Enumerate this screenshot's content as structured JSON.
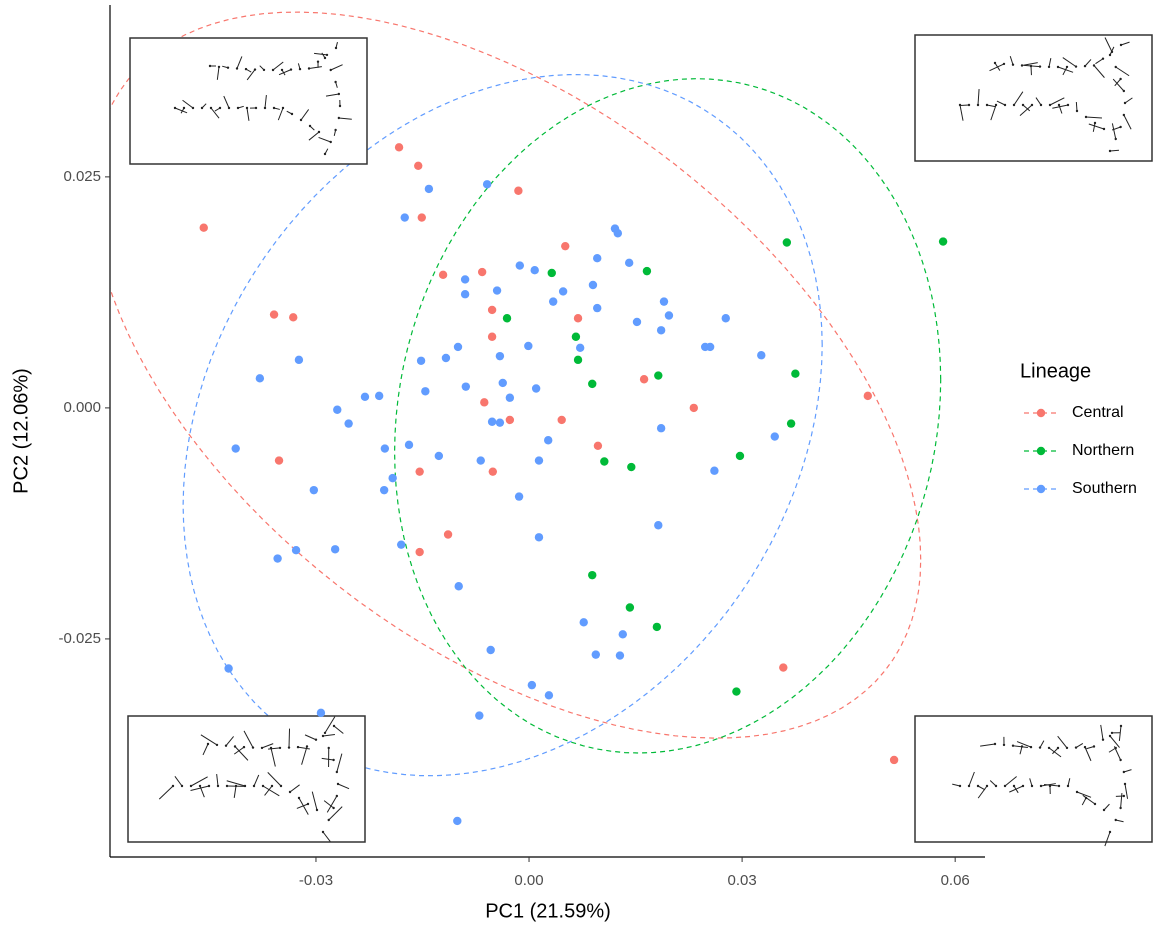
{
  "chart_data": {
    "type": "scatter",
    "x_label": "PC1 (21.59%)",
    "y_label": "PC2 (12.06%)",
    "xlim": [
      -0.059,
      0.0642
    ],
    "ylim": [
      -0.0486,
      0.0436
    ],
    "xticks": [
      -0.03,
      {
        "value": 0,
        "label": "0.00"
      },
      0.03,
      0.06
    ],
    "yticks": [
      -0.025,
      {
        "value": 0,
        "label": "0.000"
      },
      0.025
    ],
    "grid": false,
    "legend_position": "right",
    "legend_title": "Lineage",
    "series": [
      {
        "name": "Central",
        "color": "#F8766D",
        "x": [
          -0.0458,
          -0.0359,
          -0.0332,
          -0.0352,
          -0.0183,
          -0.0156,
          -0.0151,
          -0.0121,
          -0.0066,
          -0.0052,
          -0.0052,
          -0.0063,
          -0.0051,
          -0.0114,
          -0.0154,
          -0.0154,
          -0.0015,
          0.0051,
          0.0069,
          -0.0027,
          0.0046,
          0.0097,
          0.0162,
          0.0232,
          0.0477,
          0.0358,
          0.0514
        ],
        "y": [
          0.0195,
          0.0101,
          0.0098,
          -0.0057,
          0.0282,
          0.0262,
          0.0206,
          0.0144,
          0.0147,
          0.0106,
          0.0077,
          0.0006,
          -0.0069,
          -0.0137,
          -0.0156,
          -0.0069,
          0.0235,
          0.0175,
          0.0097,
          -0.0013,
          -0.0013,
          -0.0041,
          0.0031,
          0.0,
          0.0013,
          -0.0281,
          -0.0381
        ]
      },
      {
        "name": "Northern",
        "color": "#00BA38",
        "x": [
          0.0583,
          0.0363,
          0.0375,
          0.0369,
          0.0297,
          0.0292,
          0.018,
          0.0142,
          0.0089,
          0.0144,
          0.0106,
          0.0089,
          0.0069,
          0.0066,
          0.0032,
          0.0166,
          0.0182,
          -0.0031
        ],
        "y": [
          0.018,
          0.0179,
          0.0037,
          -0.0017,
          -0.0052,
          -0.0307,
          -0.0237,
          -0.0216,
          -0.0181,
          -0.0064,
          -0.0058,
          0.0026,
          0.0052,
          0.0077,
          0.0146,
          0.0148,
          0.0035,
          0.0097
        ]
      },
      {
        "name": "Southern",
        "color": "#619CFF",
        "x": [
          -0.0141,
          -0.0175,
          -0.0059,
          0.0121,
          0.0125,
          0.0096,
          0.0141,
          -0.0013,
          0.0008,
          -0.009,
          -0.0045,
          -0.009,
          0.0034,
          0.0048,
          0.009,
          0.019,
          0.0152,
          0.0197,
          0.0186,
          0.0277,
          0.0248,
          0.0255,
          0.0327,
          0.0096,
          0.0072,
          -0.0001,
          -0.0041,
          -0.01,
          -0.0117,
          -0.0152,
          -0.0146,
          -0.0089,
          -0.0037,
          -0.0027,
          0.001,
          -0.0052,
          -0.0041,
          0.0027,
          0.0014,
          -0.0068,
          -0.0127,
          -0.0169,
          -0.0203,
          -0.0192,
          -0.0204,
          -0.0254,
          -0.027,
          -0.0231,
          -0.0211,
          -0.0379,
          -0.0324,
          -0.0303,
          -0.0413,
          -0.0354,
          -0.0328,
          -0.0273,
          -0.018,
          -0.0099,
          0.0014,
          -0.0014,
          0.0182,
          0.0077,
          0.0132,
          0.0128,
          0.0094,
          0.0004,
          0.0028,
          -0.0054,
          -0.007,
          -0.0101,
          -0.0293,
          -0.0423,
          0.0346,
          0.0261,
          0.0186
        ],
        "y": [
          0.0237,
          0.0206,
          0.0242,
          0.0194,
          0.0189,
          0.0162,
          0.0157,
          0.0154,
          0.0149,
          0.0139,
          0.0127,
          0.0123,
          0.0115,
          0.0126,
          0.0133,
          0.0115,
          0.0093,
          0.01,
          0.0084,
          0.0097,
          0.0066,
          0.0066,
          0.0057,
          0.0108,
          0.0065,
          0.0067,
          0.0056,
          0.0066,
          0.0054,
          0.0051,
          0.0018,
          0.0023,
          0.0027,
          0.0011,
          0.0021,
          -0.0015,
          -0.0016,
          -0.0035,
          -0.0057,
          -0.0057,
          -0.0052,
          -0.004,
          -0.0044,
          -0.0076,
          -0.0089,
          -0.0017,
          -0.0002,
          0.0012,
          0.0013,
          0.0032,
          0.0052,
          -0.0089,
          -0.0044,
          -0.0163,
          -0.0154,
          -0.0153,
          -0.0148,
          -0.0193,
          -0.014,
          -0.0096,
          -0.0127,
          -0.0232,
          -0.0245,
          -0.0268,
          -0.0267,
          -0.03,
          -0.0311,
          -0.0262,
          -0.0333,
          -0.0447,
          -0.033,
          -0.0282,
          -0.0031,
          -0.0068,
          -0.0022
        ]
      }
    ]
  }
}
